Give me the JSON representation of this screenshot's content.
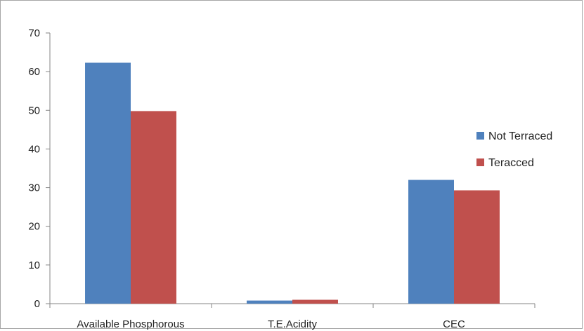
{
  "chart_data": {
    "type": "bar",
    "categories": [
      "Available Phosphorous",
      "T.E.Acidity",
      "CEC"
    ],
    "series": [
      {
        "name": "Not Terraced",
        "values": [
          62.3,
          0.8,
          32
        ],
        "color": "#4F81BD"
      },
      {
        "name": "Teracced",
        "values": [
          49.8,
          1.0,
          29.3
        ],
        "color": "#C0504D"
      }
    ],
    "title": "",
    "xlabel": "",
    "ylabel": "",
    "ylim": [
      0,
      70
    ],
    "yticks": [
      0,
      10,
      20,
      30,
      40,
      50,
      60,
      70
    ],
    "grid": false,
    "legend_position": "right"
  }
}
